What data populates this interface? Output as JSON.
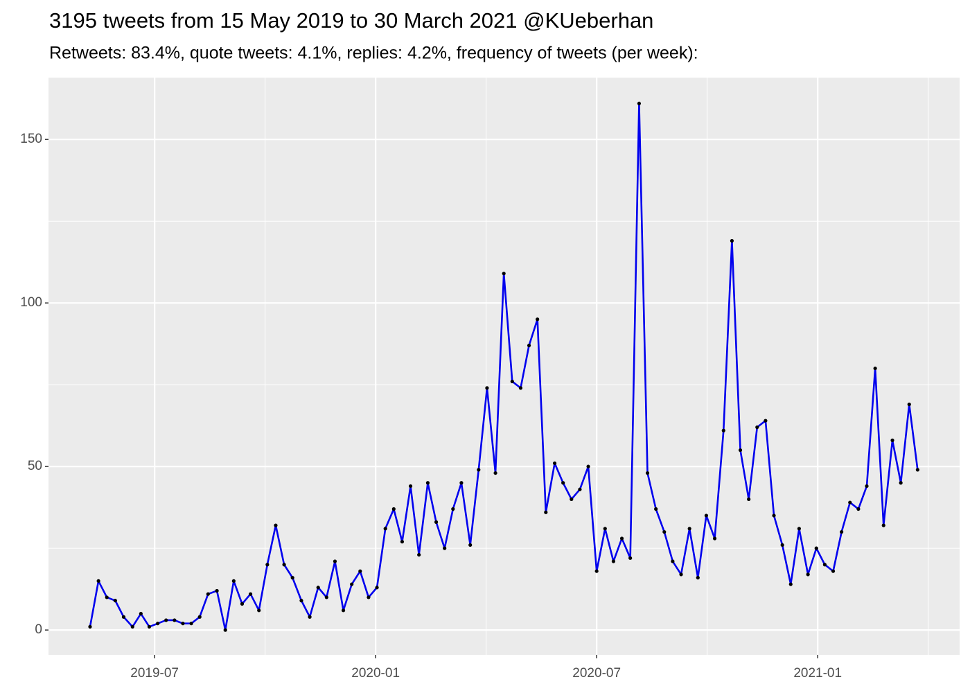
{
  "chart_data": {
    "type": "line",
    "title": "3195 tweets from 15 May 2019 to 30 March 2021 @KUeberhan",
    "subtitle": "Retweets: 83.4%, quote tweets: 4.1%, replies: 4.2%, frequency of tweets (per week):",
    "x": [
      2019.354,
      2019.373,
      2019.392,
      2019.411,
      2019.43,
      2019.45,
      2019.469,
      2019.488,
      2019.507,
      2019.526,
      2019.545,
      2019.564,
      2019.583,
      2019.602,
      2019.621,
      2019.641,
      2019.66,
      2019.679,
      2019.698,
      2019.717,
      2019.736,
      2019.755,
      2019.774,
      2019.793,
      2019.812,
      2019.832,
      2019.851,
      2019.87,
      2019.889,
      2019.908,
      2019.927,
      2019.946,
      2019.965,
      2019.984,
      2020.003,
      2020.022,
      2020.041,
      2020.06,
      2020.079,
      2020.098,
      2020.118,
      2020.137,
      2020.156,
      2020.175,
      2020.194,
      2020.214,
      2020.233,
      2020.252,
      2020.271,
      2020.29,
      2020.309,
      2020.328,
      2020.347,
      2020.366,
      2020.385,
      2020.405,
      2020.424,
      2020.443,
      2020.462,
      2020.481,
      2020.5,
      2020.519,
      2020.538,
      2020.557,
      2020.576,
      2020.596,
      2020.615,
      2020.634,
      2020.653,
      2020.672,
      2020.691,
      2020.71,
      2020.729,
      2020.748,
      2020.767,
      2020.787,
      2020.806,
      2020.825,
      2020.844,
      2020.863,
      2020.882,
      2020.901,
      2020.92,
      2020.939,
      2020.958,
      2020.978,
      2020.997,
      2021.016,
      2021.035,
      2021.054,
      2021.073,
      2021.092,
      2021.111,
      2021.13,
      2021.149,
      2021.169,
      2021.188,
      2021.207,
      2021.226
    ],
    "series": [
      {
        "color": "#0000ee",
        "marker_color": "#000000",
        "values": [
          1,
          15,
          10,
          9,
          4,
          1,
          5,
          1,
          2,
          3,
          3,
          2,
          2,
          4,
          11,
          12,
          0,
          15,
          8,
          11,
          6,
          20,
          32,
          20,
          16,
          9,
          4,
          13,
          10,
          21,
          6,
          14,
          18,
          10,
          13,
          31,
          37,
          27,
          44,
          23,
          45,
          33,
          25,
          37,
          45,
          26,
          49,
          74,
          48,
          109,
          76,
          74,
          87,
          95,
          36,
          51,
          45,
          40,
          43,
          50,
          18,
          31,
          21,
          28,
          22,
          161,
          48,
          37,
          30,
          21,
          17,
          31,
          16,
          35,
          28,
          61,
          119,
          55,
          40,
          62,
          64,
          35,
          26,
          14,
          31,
          17,
          25,
          20,
          18,
          30,
          39,
          37,
          44,
          80,
          32,
          58,
          45,
          69,
          49
        ]
      }
    ],
    "xlim": [
      2019.26,
      2021.321
    ],
    "xticks": [
      {
        "value": 2019.5,
        "label": "2019-07"
      },
      {
        "value": 2020.0,
        "label": "2020-01"
      },
      {
        "value": 2020.5,
        "label": "2020-07"
      },
      {
        "value": 2021.0,
        "label": "2021-01"
      }
    ],
    "ylim": [
      -7.6,
      168.9
    ],
    "yticks": [
      0,
      50,
      100,
      150
    ],
    "grid": true
  }
}
